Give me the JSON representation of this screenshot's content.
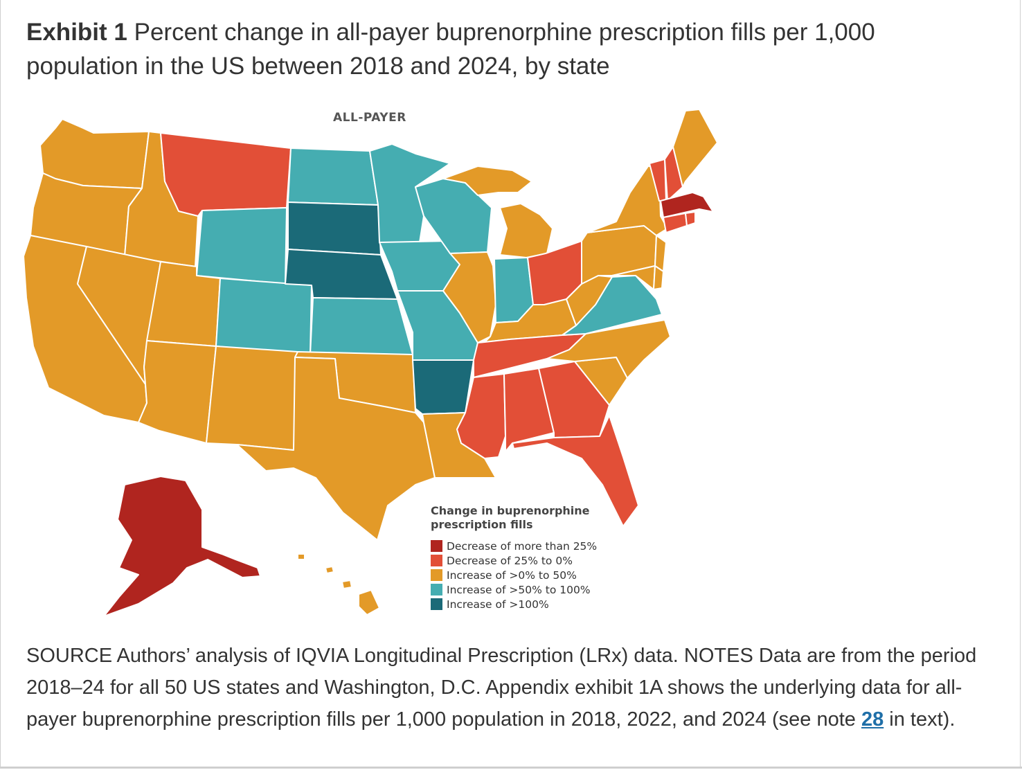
{
  "exhibit": {
    "lead": "Exhibit 1",
    "title": "Percent change in all-payer buprenorphine prescription fills per 1,000 population in the US between 2018 and 2024, by state"
  },
  "map": {
    "label": "ALL-PAYER",
    "legend": {
      "title": "Change in buprenorphine prescription fills",
      "items": [
        {
          "label": "Decrease of more than 25%",
          "color": "#b0251f"
        },
        {
          "label": "Decrease of 25% to 0%",
          "color": "#e24f37"
        },
        {
          "label": "Increase of >0% to 50%",
          "color": "#e39a28"
        },
        {
          "label": "Increase of >50% to 100%",
          "color": "#45adb1"
        },
        {
          "label": "Increase of >100%",
          "color": "#1b6a78"
        }
      ]
    },
    "colors": {
      "dec_gt25": "#b0251f",
      "dec_0_25": "#e24f37",
      "inc_0_50": "#e39a28",
      "inc_50_100": "#45adb1",
      "inc_gt100": "#1b6a78"
    },
    "state_categories": {
      "dec_gt25": [
        "AK",
        "MA"
      ],
      "dec_0_25": [
        "MT",
        "OH",
        "TN",
        "MS",
        "AL",
        "GA",
        "FL",
        "VT",
        "NH",
        "CT",
        "RI"
      ],
      "inc_0_50": [
        "WA",
        "OR",
        "CA",
        "NV",
        "ID",
        "UT",
        "AZ",
        "NM",
        "TX",
        "OK",
        "LA",
        "IL",
        "MI",
        "KY",
        "WV",
        "NC",
        "SC",
        "PA",
        "NY",
        "ME",
        "NJ",
        "MD",
        "DE",
        "HI"
      ],
      "inc_50_100": [
        "WY",
        "CO",
        "ND",
        "MN",
        "WI",
        "IA",
        "KS",
        "MO",
        "IN",
        "VA"
      ],
      "inc_gt100": [
        "SD",
        "NE",
        "AR"
      ]
    }
  },
  "notes": {
    "text_before": "SOURCE Authors’ analysis of IQVIA Longitudinal Prescription (LRx) data. NOTES Data are from the period 2018–24 for all 50 US states and Washington, D.C. Appendix exhibit 1A shows the underlying data for all-payer buprenorphine prescription fills per 1,000 population in 2018, 2022, and 2024 (see note ",
    "link": "28",
    "text_after": " in text)."
  }
}
